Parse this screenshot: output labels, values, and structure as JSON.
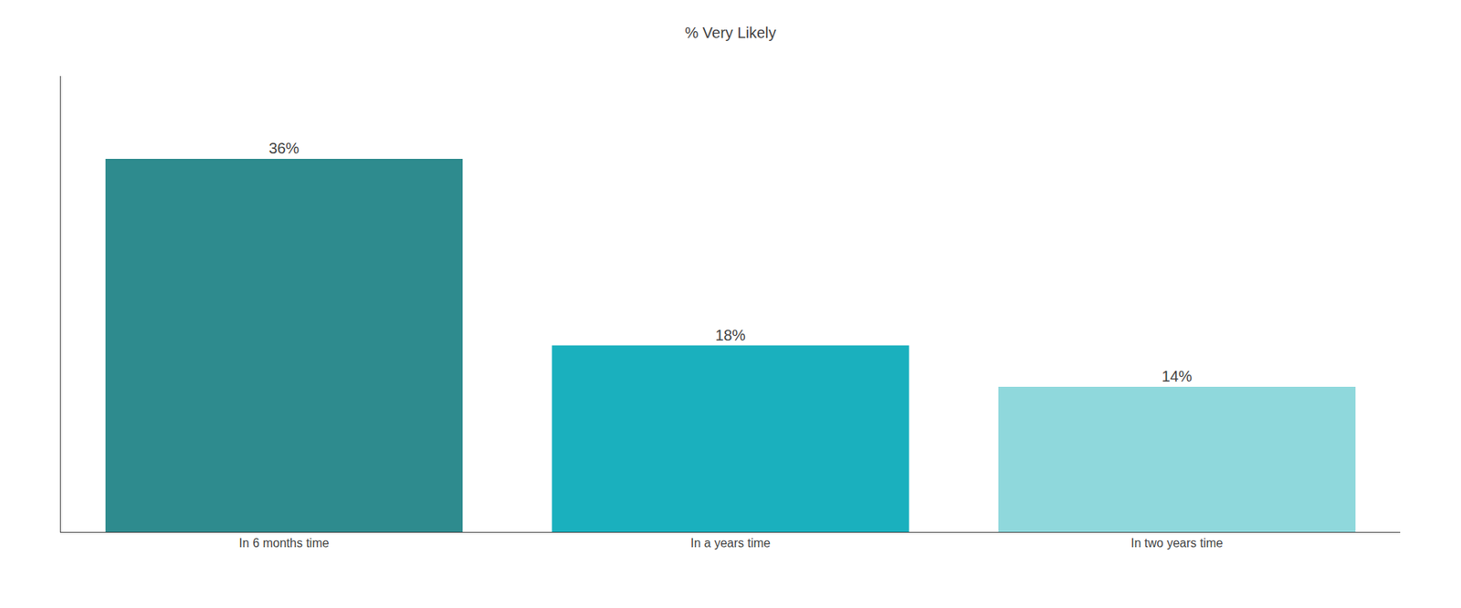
{
  "chart_data": {
    "type": "bar",
    "title": "% Very Likely",
    "categories": [
      "In 6 months time",
      "In a years time",
      "In two years time"
    ],
    "values": [
      36,
      18,
      14
    ],
    "value_labels": [
      "36%",
      "18%",
      "14%"
    ],
    "colors": [
      "#2e8b8e",
      "#1ab0be",
      "#8fd8dc"
    ],
    "ylim": [
      0,
      44
    ],
    "grid": false,
    "data_labels": true,
    "tick_labels": "x"
  }
}
